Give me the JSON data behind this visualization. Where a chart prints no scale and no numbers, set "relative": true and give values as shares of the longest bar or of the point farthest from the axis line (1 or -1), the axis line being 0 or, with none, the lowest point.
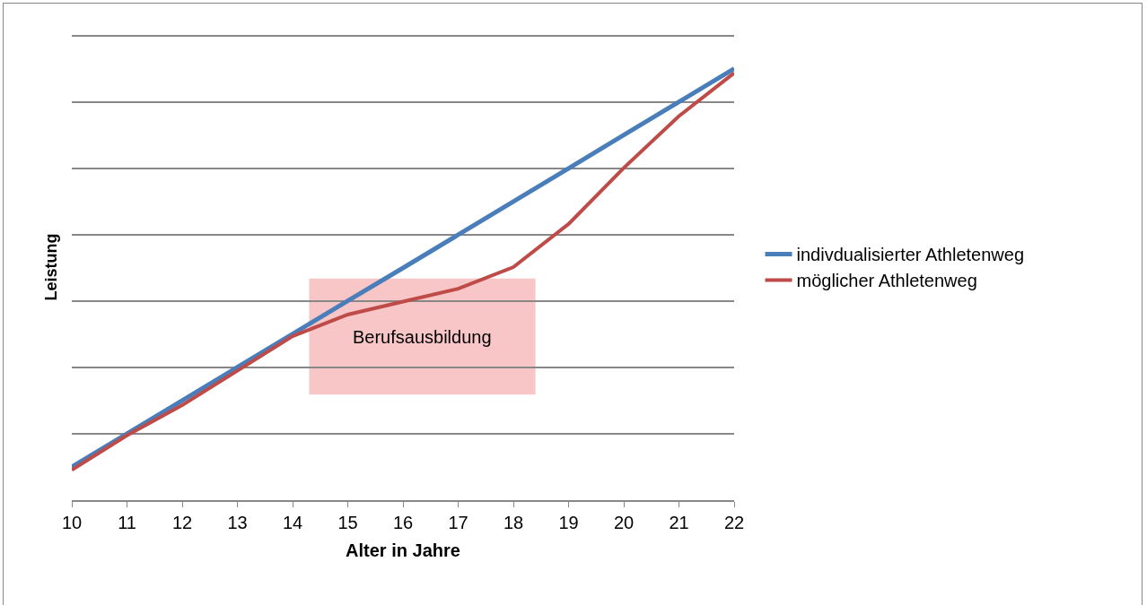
{
  "chart_data": {
    "type": "line",
    "xlabel": "Alter in Jahre",
    "ylabel": "Leistung",
    "relative": true,
    "x": [
      10,
      11,
      12,
      13,
      14,
      15,
      16,
      17,
      18,
      19,
      20,
      21,
      22
    ],
    "xlim": [
      10,
      22
    ],
    "xticks": [
      10,
      11,
      12,
      13,
      14,
      15,
      16,
      17,
      18,
      19,
      20,
      21,
      22
    ],
    "series": [
      {
        "name": "indivdualisierter Athletenweg",
        "color": "#4a7ebb",
        "values": [
          0.077,
          0.154,
          0.231,
          0.308,
          0.385,
          0.462,
          0.538,
          0.615,
          0.692,
          0.769,
          0.846,
          0.923,
          1
        ]
      },
      {
        "name": "möglicher Athletenweg",
        "color": "#be4b48",
        "values": [
          0.07,
          0.15,
          0.22,
          0.3,
          0.38,
          0.43,
          0.46,
          0.49,
          0.54,
          0.64,
          0.77,
          0.89,
          0.99
        ]
      }
    ],
    "bands": [
      {
        "axis": "x",
        "from": 14.3,
        "to": 18.4,
        "label": "Berufsausbildung",
        "color": "#f4a0a0"
      }
    ],
    "grid": "y",
    "legend": "right"
  }
}
